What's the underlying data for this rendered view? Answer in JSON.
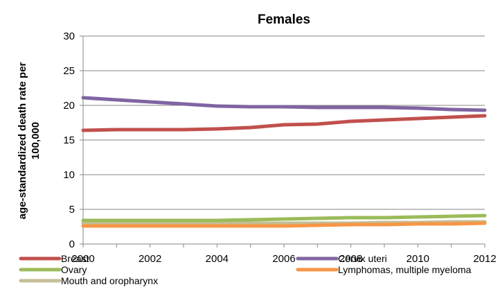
{
  "chart_data": {
    "type": "line",
    "title": "Females",
    "xlabel": "",
    "ylabel_lines": [
      "age-standardized death rate per",
      "100,000"
    ],
    "x": [
      2000,
      2001,
      2002,
      2003,
      2004,
      2005,
      2006,
      2007,
      2008,
      2009,
      2010,
      2011,
      2012
    ],
    "x_ticks": [
      "2000",
      "2002",
      "2004",
      "2006",
      "2008",
      "2010",
      "2012"
    ],
    "ylim": [
      0,
      30
    ],
    "y_ticks": [
      "0",
      "5",
      "10",
      "15",
      "20",
      "25",
      "30"
    ],
    "grid": true,
    "legend_position": "bottom",
    "series": [
      {
        "name": "Breast",
        "color": "#C0504D",
        "values": [
          16.4,
          16.5,
          16.5,
          16.5,
          16.6,
          16.8,
          17.2,
          17.3,
          17.7,
          17.9,
          18.1,
          18.3,
          18.5
        ]
      },
      {
        "name": "Cervix uteri",
        "color": "#8064A2",
        "values": [
          21.1,
          20.8,
          20.5,
          20.2,
          19.9,
          19.8,
          19.8,
          19.7,
          19.7,
          19.7,
          19.6,
          19.4,
          19.3
        ]
      },
      {
        "name": "Ovary",
        "color": "#9BBB59",
        "values": [
          3.4,
          3.4,
          3.4,
          3.4,
          3.4,
          3.5,
          3.6,
          3.7,
          3.8,
          3.8,
          3.9,
          4.0,
          4.1
        ]
      },
      {
        "name": "Lymphomas, multiple myeloma",
        "color": "#F79646",
        "values": [
          2.6,
          2.6,
          2.6,
          2.6,
          2.6,
          2.6,
          2.6,
          2.7,
          2.8,
          2.8,
          2.9,
          2.9,
          3.0
        ]
      },
      {
        "name": "Mouth and oropharynx",
        "color": "#C4BD97",
        "values": [
          3.0,
          3.0,
          3.0,
          3.0,
          3.0,
          3.0,
          3.0,
          3.0,
          3.0,
          3.1,
          3.1,
          3.2,
          3.2
        ]
      }
    ]
  }
}
